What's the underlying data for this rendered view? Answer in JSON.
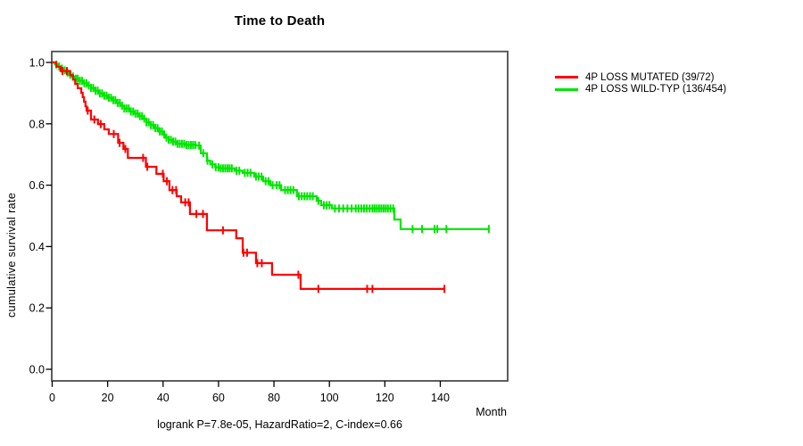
{
  "title": "Time to Death",
  "y_axis": {
    "label": "cumulative survival rate",
    "ticks": [
      "1.0",
      "0.8",
      "0.6",
      "0.4",
      "0.2",
      "0.0"
    ],
    "tick_values": [
      1.0,
      0.8,
      0.6,
      0.4,
      0.2,
      0.0
    ]
  },
  "x_axis": {
    "label": "Month",
    "ticks": [
      "0",
      "20",
      "40",
      "60",
      "80",
      "100",
      "120",
      "140"
    ],
    "tick_values": [
      0,
      20,
      40,
      60,
      80,
      100,
      120,
      140
    ]
  },
  "annotation": "logrank P=7.8e-05, HazardRatio=2, C-index=0.66",
  "legend": [
    {
      "label": "4P LOSS MUTATED (39/72)",
      "color": "#ff0000"
    },
    {
      "label": "4P LOSS WILD-TYP (136/454)",
      "color": "#00e600"
    }
  ],
  "colors": {
    "box": "#4d4d4d",
    "axis": "#000000",
    "mutated": "#ff0000",
    "wildtype": "#00e600"
  },
  "chart_data": {
    "type": "line",
    "subtype": "kaplan-meier-step",
    "title": "Time to Death",
    "xlabel": "Month",
    "ylabel": "cumulative survival rate",
    "xlim": [
      0,
      164
    ],
    "ylim": [
      0,
      1.0
    ],
    "x_ticks": [
      0,
      20,
      40,
      60,
      80,
      100,
      120,
      140
    ],
    "y_ticks": [
      0.0,
      0.2,
      0.4,
      0.6,
      0.8,
      1.0
    ],
    "grid": false,
    "legend_position": "right-outside",
    "annotation": "logrank P=7.8e-05, HazardRatio=2, C-index=0.66",
    "series": [
      {
        "name": "4P LOSS WILD-TYP (136/454)",
        "color": "#00e600",
        "end": 157.5,
        "steps": [
          [
            0,
            1.0
          ],
          [
            1,
            0.993
          ],
          [
            2,
            0.987
          ],
          [
            3,
            0.98
          ],
          [
            4,
            0.974
          ],
          [
            5,
            0.967
          ],
          [
            6,
            0.96
          ],
          [
            7,
            0.954
          ],
          [
            8,
            0.947
          ],
          [
            9.5,
            0.94
          ],
          [
            11,
            0.932
          ],
          [
            12.5,
            0.925
          ],
          [
            14,
            0.917
          ],
          [
            15.5,
            0.908
          ],
          [
            17,
            0.899
          ],
          [
            18.5,
            0.892
          ],
          [
            20,
            0.885
          ],
          [
            21.5,
            0.877
          ],
          [
            23,
            0.868
          ],
          [
            24.5,
            0.859
          ],
          [
            26,
            0.85
          ],
          [
            28,
            0.84
          ],
          [
            29.5,
            0.833
          ],
          [
            31,
            0.825
          ],
          [
            32.5,
            0.817
          ],
          [
            34,
            0.805
          ],
          [
            35.5,
            0.796
          ],
          [
            37,
            0.786
          ],
          [
            38.5,
            0.775
          ],
          [
            40,
            0.765
          ],
          [
            40.7,
            0.755
          ],
          [
            42,
            0.748
          ],
          [
            43.5,
            0.742
          ],
          [
            45,
            0.735
          ],
          [
            48,
            0.731
          ],
          [
            52,
            0.729
          ],
          [
            53.6,
            0.704
          ],
          [
            55.8,
            0.68
          ],
          [
            57,
            0.668
          ],
          [
            58.8,
            0.658
          ],
          [
            60.5,
            0.655
          ],
          [
            65.8,
            0.647
          ],
          [
            68.7,
            0.64
          ],
          [
            72.9,
            0.628
          ],
          [
            76.1,
            0.613
          ],
          [
            78.7,
            0.6
          ],
          [
            82.6,
            0.584
          ],
          [
            88.3,
            0.564
          ],
          [
            95.4,
            0.549
          ],
          [
            97,
            0.535
          ],
          [
            100.9,
            0.524
          ],
          [
            123.4,
            0.488
          ],
          [
            125.7,
            0.457
          ]
        ],
        "censor_months": [
          1.5,
          2.5,
          3.5,
          4.5,
          5.5,
          6.5,
          7.5,
          8.5,
          9.2,
          10,
          10.8,
          11.6,
          12.4,
          13.2,
          14,
          14.8,
          15.6,
          16.4,
          17.2,
          18,
          18.8,
          19.6,
          20.4,
          21.2,
          22,
          22.8,
          23.6,
          24.4,
          25.2,
          26,
          26.8,
          27.6,
          28.4,
          29.2,
          30,
          30.8,
          31.6,
          32.4,
          33.2,
          34,
          34.8,
          35.6,
          36.4,
          37.2,
          38,
          38.8,
          39.6,
          40.4,
          41.2,
          42,
          42.8,
          43.6,
          44.4,
          45.2,
          46,
          46.8,
          47.6,
          48.4,
          49.2,
          50,
          50.8,
          51.6,
          53,
          54.5,
          56,
          57.8,
          59,
          60,
          60.8,
          61.6,
          62.4,
          63.2,
          64,
          64.8,
          66.5,
          67.5,
          69.5,
          70.5,
          71.5,
          73.5,
          74.5,
          75.5,
          77,
          78,
          79.5,
          81,
          82,
          84,
          85,
          86,
          87,
          89,
          90,
          91,
          92,
          93,
          94,
          96,
          98,
          99,
          100,
          102,
          103.5,
          105,
          106.5,
          108,
          109.5,
          110.5,
          111.5,
          112.5,
          113.5,
          114.5,
          115.5,
          116.3,
          117.1,
          117.9,
          118.7,
          119.5,
          120.3,
          121.1,
          122,
          123,
          130,
          133.4,
          137.9,
          138.9,
          142.2,
          157.5
        ]
      },
      {
        "name": "4P LOSS MUTATED (39/72)",
        "color": "#ff0000",
        "end": 141.5,
        "steps": [
          [
            0,
            1.0
          ],
          [
            1.5,
            0.986
          ],
          [
            3,
            0.972
          ],
          [
            6.5,
            0.958
          ],
          [
            7.5,
            0.944
          ],
          [
            8.3,
            0.93
          ],
          [
            9.2,
            0.916
          ],
          [
            10.5,
            0.901
          ],
          [
            11,
            0.887
          ],
          [
            11.5,
            0.872
          ],
          [
            12,
            0.857
          ],
          [
            12.4,
            0.843
          ],
          [
            14,
            0.814
          ],
          [
            16.5,
            0.799
          ],
          [
            18.8,
            0.782
          ],
          [
            20.4,
            0.767
          ],
          [
            23.8,
            0.738
          ],
          [
            25.7,
            0.718
          ],
          [
            27.3,
            0.689
          ],
          [
            33.8,
            0.66
          ],
          [
            37.6,
            0.637
          ],
          [
            40.2,
            0.613
          ],
          [
            42.3,
            0.584
          ],
          [
            44.9,
            0.564
          ],
          [
            46.5,
            0.544
          ],
          [
            49.7,
            0.506
          ],
          [
            55.8,
            0.453
          ],
          [
            66.4,
            0.427
          ],
          [
            68.7,
            0.38
          ],
          [
            73.5,
            0.346
          ],
          [
            79.3,
            0.308
          ],
          [
            89.6,
            0.262
          ]
        ],
        "censor_months": [
          3.7,
          5.3,
          12.8,
          15.2,
          17.5,
          22.2,
          24.3,
          26.4,
          32.8,
          34.3,
          39.9,
          41.4,
          43.4,
          44.7,
          48,
          49.2,
          52,
          54.4,
          61.6,
          69,
          70.3,
          74,
          75.6,
          88.8,
          96,
          113.6,
          115.5,
          141.5
        ]
      }
    ]
  }
}
